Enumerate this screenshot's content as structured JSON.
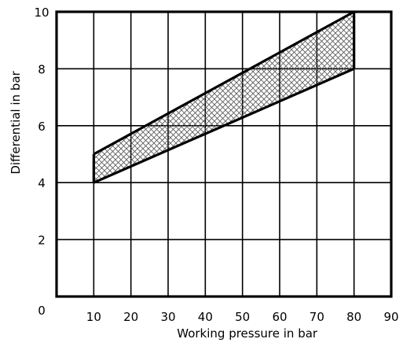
{
  "chart_data": {
    "type": "area",
    "title": "",
    "xlabel": "Working pressure in bar",
    "ylabel": "Differential in bar",
    "xlim": [
      0,
      90
    ],
    "ylim": [
      0,
      10
    ],
    "xticks": [
      10,
      20,
      30,
      40,
      50,
      60,
      70,
      80,
      90
    ],
    "yticks": [
      2,
      4,
      6,
      8,
      10
    ],
    "x_origin_label": "0",
    "grid": true,
    "fill_pattern": "crosshatch",
    "region": {
      "upper": {
        "x": [
          10,
          80
        ],
        "y": [
          5,
          10
        ]
      },
      "lower": {
        "x": [
          10,
          80
        ],
        "y": [
          4,
          8
        ]
      }
    },
    "colors": {
      "line": "#000000",
      "hatch": "#555555",
      "background": "#ffffff"
    }
  }
}
